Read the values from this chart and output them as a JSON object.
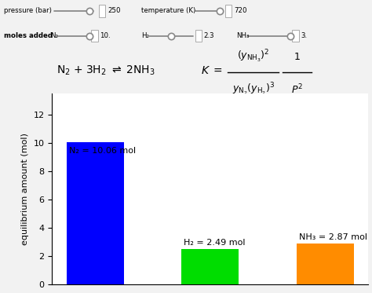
{
  "categories": [
    "N₂",
    "H₂",
    "NH₃"
  ],
  "values": [
    10.06,
    2.49,
    2.87
  ],
  "bar_colors": [
    "#0000FF",
    "#00DD00",
    "#FF8C00"
  ],
  "bar_labels": [
    "N₂ = 10.06 mol",
    "H₂ = 2.49 mol",
    "NH₃ = 2.87 mol"
  ],
  "ylabel": "equilibrium amount (mol)",
  "ylim": [
    0,
    13.5
  ],
  "yticks": [
    0,
    2,
    4,
    6,
    8,
    10,
    12
  ],
  "background_color": "#F2F2F2",
  "bar_width": 0.5,
  "bar_positions": [
    0,
    1,
    2
  ],
  "pressure_label": "pressure (bar)",
  "pressure_value": "250",
  "temperature_label": "temperature (K)",
  "temperature_value": "720",
  "n2_moles": "10.",
  "h2_moles": "2.3",
  "nh3_moles": "3."
}
